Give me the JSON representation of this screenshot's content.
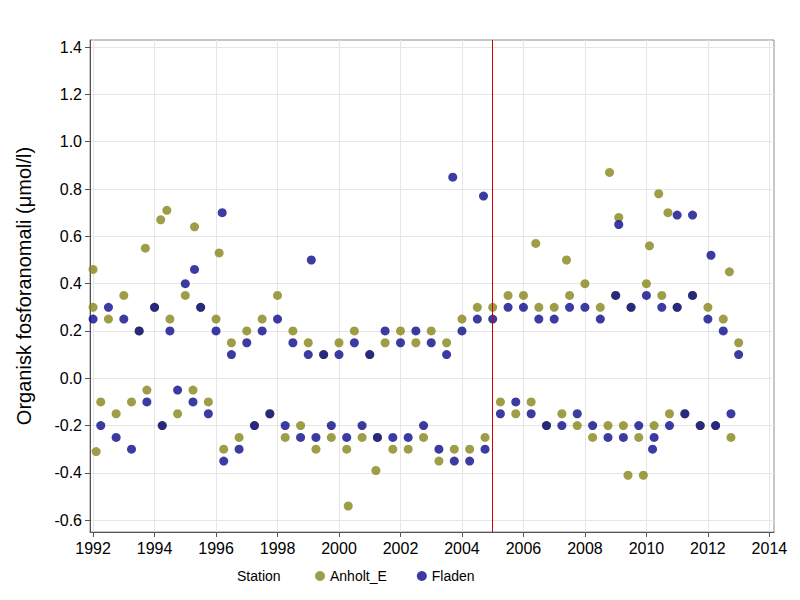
{
  "chart_data": {
    "type": "scatter",
    "y_label": "Organisk fosforanomali (μmol/l)",
    "legend_title": "Station",
    "legend": "bottom",
    "grid": true,
    "marker": "circle",
    "xlim": [
      1991.9,
      2014.15
    ],
    "xticks": [
      1992,
      1994,
      1996,
      1998,
      2000,
      2002,
      2004,
      2006,
      2008,
      2010,
      2012,
      2014
    ],
    "ylim": [
      -0.65,
      1.43
    ],
    "yticks": [
      -0.6,
      -0.4,
      -0.2,
      {
        "value": 0,
        "label": "0.0"
      },
      0.2,
      0.4,
      0.6,
      0.8,
      {
        "value": 1,
        "label": "1.0"
      },
      1.2,
      1.4
    ],
    "vlines": [
      {
        "x": 2005,
        "color": "#cc0000"
      }
    ],
    "series": [
      {
        "name": "Anholt_E",
        "color": "#86861a",
        "x": [
          1992.0,
          1992.25,
          1992.5,
          1992.75,
          1993.0,
          1993.25,
          1993.5,
          1993.75,
          1994.0,
          1994.25,
          1994.5,
          1994.75,
          1995.0,
          1995.25,
          1995.5,
          1995.75,
          1996.0,
          1996.25,
          1996.5,
          1996.75,
          1997.0,
          1997.25,
          1997.5,
          1997.75,
          1998.0,
          1998.25,
          1998.5,
          1998.75,
          1999.0,
          1999.25,
          1999.5,
          1999.75,
          2000.0,
          2000.25,
          2000.5,
          2000.75,
          2001.0,
          2001.25,
          2001.5,
          2001.75,
          2002.0,
          2002.25,
          2002.5,
          2002.75,
          2003.0,
          2003.25,
          2003.5,
          2003.75,
          2004.0,
          2004.25,
          2004.5,
          2004.75,
          2005.0,
          2005.25,
          2005.5,
          2005.75,
          2006.0,
          2006.25,
          2006.5,
          2006.75,
          2007.0,
          2007.25,
          2007.5,
          2007.75,
          2008.0,
          2008.25,
          2008.5,
          2008.75,
          2009.0,
          2009.25,
          2009.5,
          2009.75,
          2010.0,
          2010.25,
          2010.5,
          2010.75,
          2011.0,
          2011.25,
          2011.5,
          2011.75,
          2012.0,
          2012.25,
          2012.5,
          2012.75,
          2013.0,
          1992.0,
          1992.1,
          1993.7,
          1994.2,
          1994.4,
          1995.3,
          1996.1,
          2000.3,
          2001.2,
          2006.4,
          2007.4,
          2008.8,
          2009.1,
          2009.4,
          2009.9,
          2010.1,
          2010.4,
          2010.7,
          2012.7
        ],
        "values": [
          0.3,
          -0.1,
          0.25,
          -0.15,
          0.35,
          -0.1,
          0.2,
          -0.05,
          0.3,
          -0.2,
          0.25,
          -0.15,
          0.35,
          -0.05,
          0.3,
          -0.1,
          0.25,
          -0.3,
          0.15,
          -0.25,
          0.2,
          -0.2,
          0.25,
          -0.15,
          0.35,
          -0.25,
          0.2,
          -0.2,
          0.15,
          -0.3,
          0.1,
          -0.25,
          0.15,
          -0.3,
          0.2,
          -0.25,
          0.1,
          -0.25,
          0.15,
          -0.3,
          0.2,
          -0.3,
          0.15,
          -0.25,
          0.2,
          -0.35,
          0.15,
          -0.3,
          0.25,
          -0.3,
          0.3,
          -0.25,
          0.3,
          -0.1,
          0.35,
          -0.15,
          0.35,
          -0.1,
          0.3,
          -0.2,
          0.3,
          -0.15,
          0.35,
          -0.2,
          0.4,
          -0.25,
          0.3,
          -0.2,
          0.35,
          -0.2,
          0.3,
          -0.25,
          0.4,
          -0.2,
          0.35,
          -0.15,
          0.3,
          -0.15,
          0.35,
          -0.2,
          0.3,
          -0.2,
          0.25,
          -0.25,
          0.15,
          0.46,
          -0.31,
          0.55,
          0.67,
          0.71,
          0.64,
          0.53,
          -0.54,
          -0.39,
          0.57,
          0.5,
          0.87,
          0.68,
          -0.41,
          -0.41,
          0.56,
          0.78,
          0.7,
          0.45
        ]
      },
      {
        "name": "Fladen",
        "color": "#0a0a8a",
        "x": [
          1992.0,
          1992.25,
          1992.5,
          1992.75,
          1993.0,
          1993.25,
          1993.5,
          1993.75,
          1994.0,
          1994.25,
          1994.5,
          1994.75,
          1995.0,
          1995.25,
          1995.5,
          1995.75,
          1996.0,
          1996.25,
          1996.5,
          1996.75,
          1997.0,
          1997.25,
          1997.5,
          1997.75,
          1998.0,
          1998.25,
          1998.5,
          1998.75,
          1999.0,
          1999.25,
          1999.5,
          1999.75,
          2000.0,
          2000.25,
          2000.5,
          2000.75,
          2001.0,
          2001.25,
          2001.5,
          2001.75,
          2002.0,
          2002.25,
          2002.5,
          2002.75,
          2003.0,
          2003.25,
          2003.5,
          2003.75,
          2004.0,
          2004.25,
          2004.5,
          2004.75,
          2005.0,
          2005.25,
          2005.5,
          2005.75,
          2006.0,
          2006.25,
          2006.5,
          2006.75,
          2007.0,
          2007.25,
          2007.5,
          2007.75,
          2008.0,
          2008.25,
          2008.5,
          2008.75,
          2009.0,
          2009.25,
          2009.5,
          2009.75,
          2010.0,
          2010.25,
          2010.5,
          2010.75,
          2011.0,
          2011.25,
          2011.5,
          2011.75,
          2012.0,
          2012.25,
          2012.5,
          2012.75,
          2013.0,
          1996.2,
          1999.1,
          2003.7,
          2004.7,
          2009.1,
          2011.0,
          2011.5,
          2012.1,
          1995.3,
          2010.2
        ],
        "values": [
          0.25,
          -0.2,
          0.3,
          -0.25,
          0.25,
          -0.3,
          0.2,
          -0.1,
          0.3,
          -0.2,
          0.2,
          -0.05,
          0.4,
          -0.1,
          0.3,
          -0.15,
          0.2,
          -0.35,
          0.1,
          -0.3,
          0.15,
          -0.2,
          0.2,
          -0.15,
          0.25,
          -0.2,
          0.15,
          -0.25,
          0.1,
          -0.25,
          0.1,
          -0.2,
          0.1,
          -0.25,
          0.15,
          -0.2,
          0.1,
          -0.25,
          0.2,
          -0.25,
          0.15,
          -0.25,
          0.2,
          -0.2,
          0.15,
          -0.3,
          0.1,
          -0.35,
          0.2,
          -0.35,
          0.25,
          -0.3,
          0.25,
          -0.15,
          0.3,
          -0.1,
          0.3,
          -0.15,
          0.25,
          -0.2,
          0.25,
          -0.2,
          0.3,
          -0.15,
          0.3,
          -0.2,
          0.25,
          -0.25,
          0.35,
          -0.25,
          0.3,
          -0.2,
          0.35,
          -0.25,
          0.3,
          -0.2,
          0.3,
          -0.15,
          0.35,
          -0.2,
          0.25,
          -0.2,
          0.2,
          -0.15,
          0.1,
          0.7,
          0.5,
          0.85,
          0.77,
          0.65,
          0.69,
          0.69,
          0.52,
          0.46,
          -0.3
        ]
      }
    ]
  }
}
